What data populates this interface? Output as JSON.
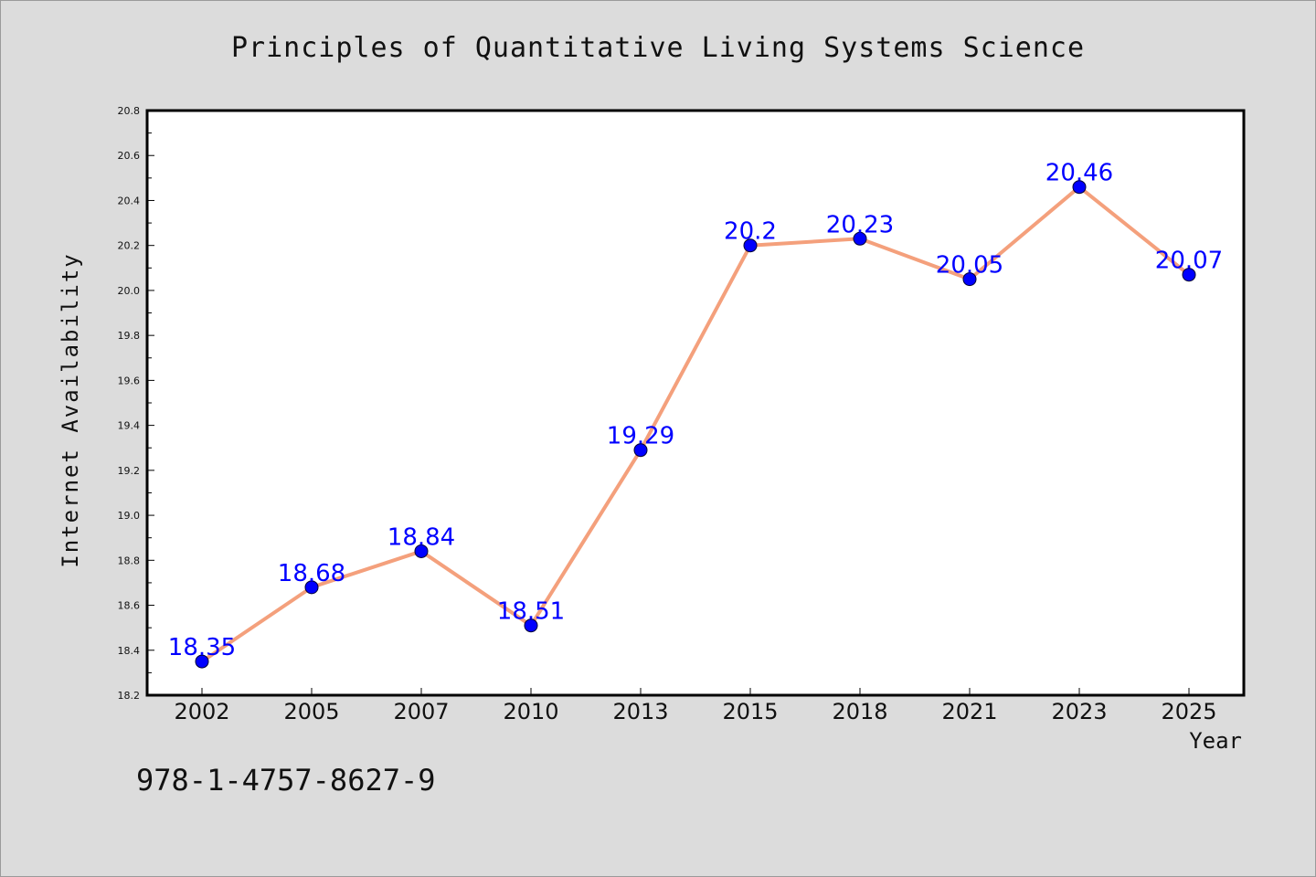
{
  "page": {
    "background": "#dcdcdc"
  },
  "chart_data": {
    "type": "line",
    "title": "Principles of Quantitative Living Systems Science",
    "xlabel": "Year",
    "ylabel": "Internet Availability",
    "x": [
      "2002",
      "2005",
      "2007",
      "2010",
      "2013",
      "2015",
      "2018",
      "2021",
      "2023",
      "2025"
    ],
    "series": [
      {
        "values": [
          18.35,
          18.68,
          18.84,
          18.51,
          19.29,
          20.2,
          20.23,
          20.05,
          20.46,
          20.07
        ],
        "labels": [
          "18.35",
          "18.68",
          "18.84",
          "18.51",
          "19.29",
          "20.2",
          "20.23",
          "20.05",
          "20.46",
          "20.07"
        ],
        "line_color": "#f4a07c",
        "marker_color": "#0000ff"
      }
    ],
    "ylim": [
      18.2,
      20.8
    ],
    "yticks": [
      "18.2",
      "18.4",
      "18.6",
      "18.8",
      "19.0",
      "19.2",
      "19.4",
      "19.6",
      "19.8",
      "20.0",
      "20.2",
      "20.4",
      "20.6",
      "20.8"
    ],
    "grid": false,
    "plot_background": "#ffffff",
    "data_label_color": "#0000ff"
  },
  "footer": {
    "isbn": "978-1-4757-8627-9"
  }
}
